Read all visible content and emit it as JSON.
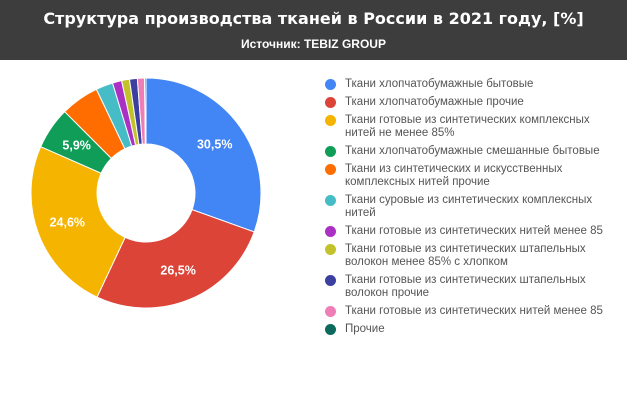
{
  "header": {
    "title": "Структура производства тканей в России в 2021 году, [%]",
    "subtitle": "Источник: TEBIZ GROUP",
    "background": "#3d3d3d"
  },
  "chart_data": {
    "type": "pie",
    "donut": true,
    "title": "Структура производства тканей в России в 2021 году, [%]",
    "legend_position": "right",
    "start_angle_deg": 0,
    "series": [
      {
        "name": "Ткани хлопчатобумажные бытовые",
        "value": 30.5,
        "label": "30,5%",
        "color": "#4285f4"
      },
      {
        "name": "Ткани хлопчатобумажные прочие",
        "value": 26.5,
        "label": "26,5%",
        "color": "#db4437"
      },
      {
        "name": "Ткани готовые из синтетических комплексных нитей не менее 85%",
        "value": 24.6,
        "label": "24,6%",
        "color": "#f4b400"
      },
      {
        "name": "Ткани хлопчатобумажные смешанные бытовые",
        "value": 5.9,
        "label": "5,9%",
        "color": "#0f9d58"
      },
      {
        "name": "Ткани из синтетических и искусственных комплексных нитей прочие",
        "value": 5.4,
        "label": "",
        "color": "#ff6d01"
      },
      {
        "name": "Ткани суровые из синтетических комплексных нитей",
        "value": 2.4,
        "label": "",
        "color": "#46bdc6"
      },
      {
        "name": "Ткани готовые из синтетических нитей менее 85",
        "value": 1.3,
        "label": "",
        "color": "#ab30c4"
      },
      {
        "name": "Ткани готовые из синтетических штапельных волокон менее 85% с хлопком",
        "value": 1.1,
        "label": "",
        "color": "#c2c22b"
      },
      {
        "name": "Ткани готовые из синтетических штапельных волокон прочие",
        "value": 1.1,
        "label": "",
        "color": "#3b3fa0"
      },
      {
        "name": "Ткани готовые из синтетических нитей менее 85",
        "value": 1.0,
        "label": "",
        "color": "#ef7eb6"
      },
      {
        "name": "Прочие",
        "value": 0.2,
        "label": "",
        "color": "#0b6a5d"
      }
    ]
  }
}
